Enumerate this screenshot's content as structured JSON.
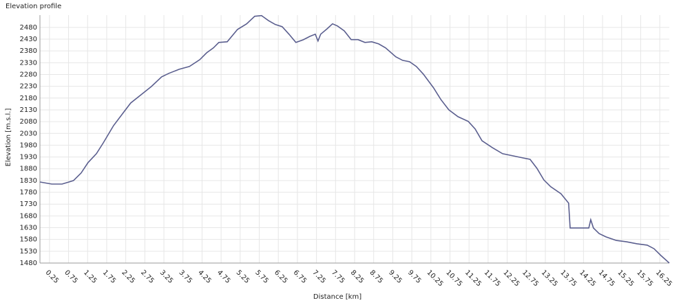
{
  "chart_data": {
    "type": "line",
    "title": "Elevation profile",
    "x_label": "Distance [km]",
    "y_label": "Elevation [m.s.l.]",
    "x": [
      0,
      0.31,
      0.58,
      0.76,
      0.88,
      1.08,
      1.26,
      1.48,
      1.66,
      1.93,
      2.2,
      2.38,
      2.65,
      2.92,
      3.19,
      3.38,
      3.65,
      3.92,
      4.19,
      4.37,
      4.55,
      4.69,
      4.91,
      5.18,
      5.42,
      5.63,
      5.81,
      5.99,
      6.17,
      6.35,
      6.53,
      6.71,
      6.9,
      7.08,
      7.22,
      7.29,
      7.36,
      7.53,
      7.67,
      7.8,
      7.98,
      8.16,
      8.34,
      8.52,
      8.7,
      8.88,
      9.06,
      9.33,
      9.51,
      9.69,
      9.87,
      10.05,
      10.32,
      10.51,
      10.72,
      10.96,
      11.23,
      11.41,
      11.59,
      11.86,
      12.13,
      12.4,
      12.67,
      12.85,
      13.03,
      13.21,
      13.39,
      13.66,
      13.86,
      13.9,
      14.12,
      14.39,
      14.44,
      14.51,
      14.66,
      14.84,
      15.11,
      15.38,
      15.65,
      15.92,
      16.1,
      16.28,
      16.5
    ],
    "series": [
      {
        "name": "Elevation",
        "color": "#5a5e8e",
        "values": [
          1824,
          1815,
          1815,
          1824,
          1830,
          1862,
          1906,
          1944,
          1990,
          2063,
          2121,
          2159,
          2194,
          2229,
          2270,
          2285,
          2302,
          2314,
          2343,
          2372,
          2393,
          2416,
          2419,
          2471,
          2495,
          2527,
          2530,
          2509,
          2492,
          2483,
          2451,
          2416,
          2427,
          2442,
          2451,
          2422,
          2451,
          2474,
          2495,
          2486,
          2465,
          2428,
          2428,
          2416,
          2419,
          2410,
          2393,
          2355,
          2340,
          2334,
          2314,
          2282,
          2223,
          2174,
          2130,
          2101,
          2081,
          2049,
          1999,
          1970,
          1944,
          1935,
          1926,
          1920,
          1882,
          1833,
          1804,
          1774,
          1734,
          1629,
          1629,
          1629,
          1664,
          1629,
          1605,
          1591,
          1576,
          1570,
          1562,
          1556,
          1541,
          1512,
          1480
        ]
      }
    ],
    "xlim": [
      0,
      16.5
    ],
    "ylim": [
      1480,
      2532
    ],
    "xticks": [
      0.25,
      0.75,
      1.25,
      1.75,
      2.25,
      2.75,
      3.25,
      3.75,
      4.25,
      4.75,
      5.25,
      5.75,
      6.25,
      6.75,
      7.25,
      7.75,
      8.25,
      8.75,
      9.25,
      9.75,
      10.25,
      10.75,
      11.25,
      11.75,
      12.25,
      12.75,
      13.25,
      13.75,
      14.25,
      14.75,
      15.25,
      15.75,
      16.25
    ],
    "yticks": [
      1480,
      1530,
      1580,
      1630,
      1680,
      1730,
      1780,
      1830,
      1880,
      1930,
      1980,
      2030,
      2080,
      2130,
      2180,
      2230,
      2280,
      2330,
      2380,
      2430,
      2480
    ],
    "grid": true
  }
}
